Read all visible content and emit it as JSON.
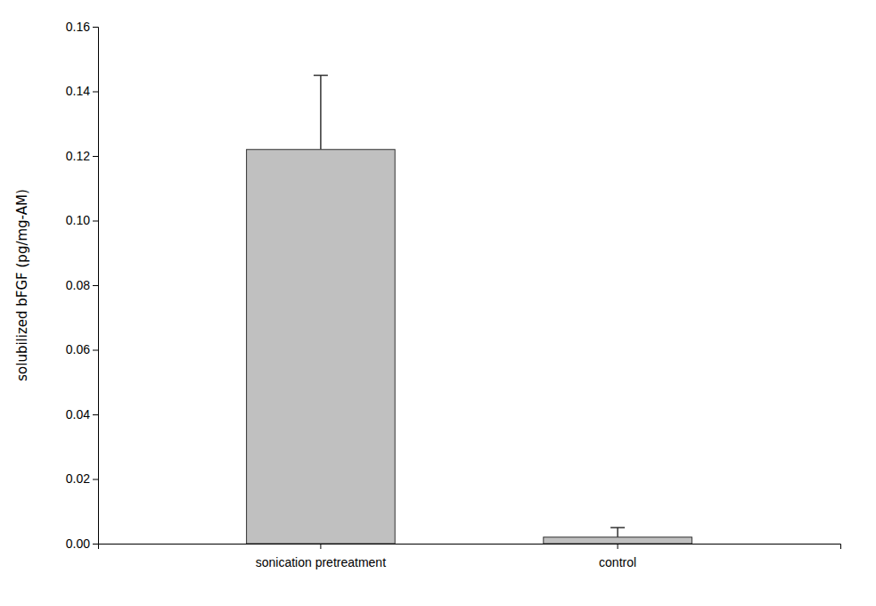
{
  "chart_data": {
    "type": "bar",
    "categories": [
      "sonication pretreatment",
      "control"
    ],
    "values": [
      0.122,
      0.002
    ],
    "errors_up": [
      0.023,
      0.003
    ],
    "color": "#c0c0c0",
    "ylabel": "solubilized bFGF (pg/mg-AM)",
    "ylim": [
      0,
      0.16
    ],
    "yticks": [
      {
        "value": 0,
        "label": "0.00"
      },
      0.02,
      0.04,
      0.06,
      0.08,
      {
        "value": 0.1,
        "label": "0.10"
      },
      0.12,
      0.14,
      0.16
    ],
    "grid": false
  }
}
